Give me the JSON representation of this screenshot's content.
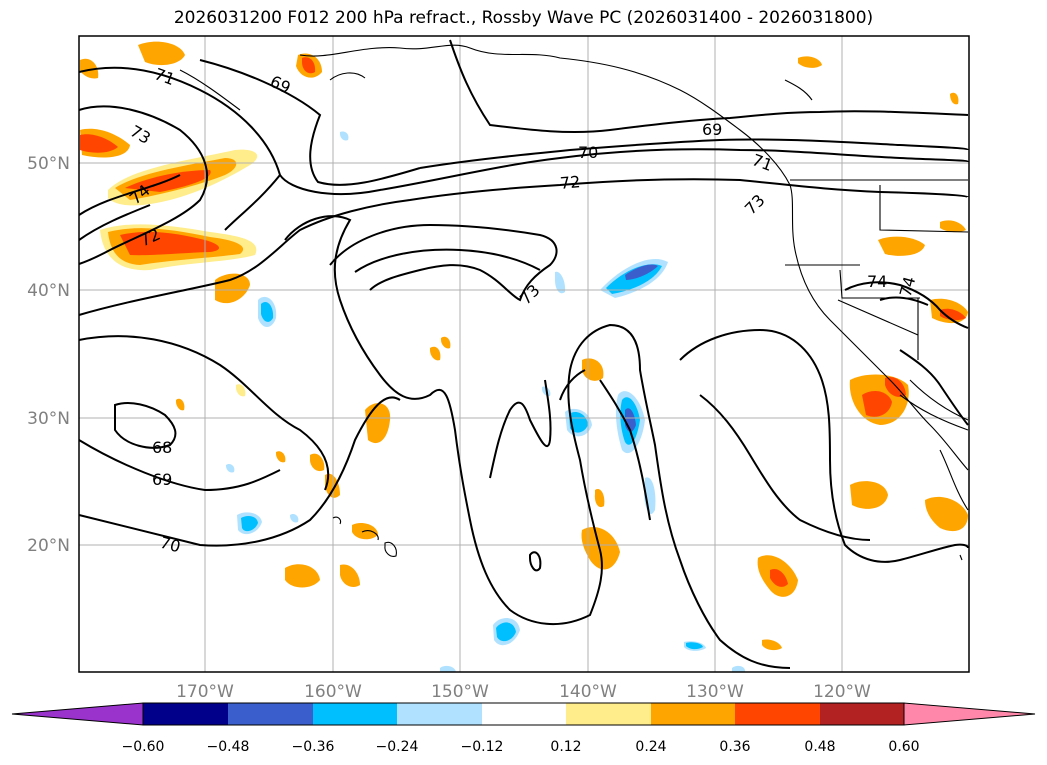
{
  "title": "2026031200 F012 200 hPa refract., Rossby Wave PC (2026031400 - 2026031800)",
  "lat_labels": [
    "50°N",
    "40°N",
    "30°N",
    "20°N"
  ],
  "lon_labels": [
    "170°W",
    "160°W",
    "150°W",
    "140°W",
    "130°W",
    "120°W"
  ],
  "contour_labels": [
    "71",
    "69",
    "73",
    "70",
    "72",
    "69",
    "71",
    "73",
    "74",
    "72",
    "73",
    "74",
    "74",
    "68",
    "69",
    "70"
  ],
  "colorbar": {
    "ticks": [
      "−0.60",
      "−0.48",
      "−0.36",
      "−0.24",
      "−0.12",
      "0.12",
      "0.24",
      "0.36",
      "0.48",
      "0.60"
    ],
    "colors": [
      "#9933cc",
      "#00008b",
      "#3a5fcd",
      "#00bfff",
      "#b0e2ff",
      "#ffffff",
      "#ffec8b",
      "#ffa500",
      "#ff4500",
      "#b22222",
      "#ff88aa"
    ]
  },
  "colors": {
    "land_outline": "#000000",
    "grid": "#b0b0b0",
    "label_gray": "#808080"
  }
}
